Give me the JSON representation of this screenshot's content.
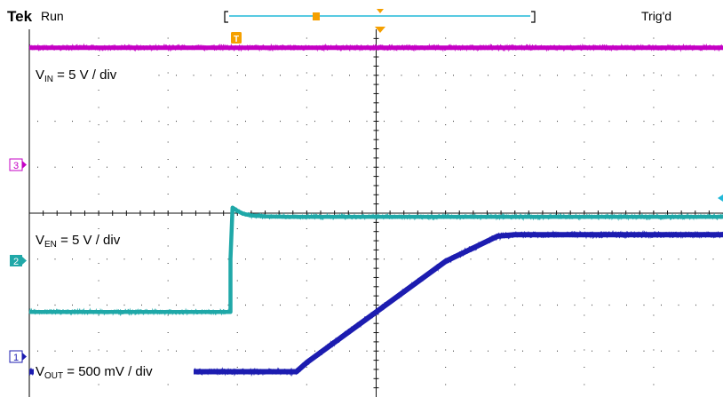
{
  "header": {
    "brand": "Tek",
    "mode": "Run",
    "trigger_status": "Trig'd"
  },
  "channel_labels": {
    "ch3": {
      "prefix": "V",
      "subscript": "IN",
      "suffix": " = 5 V / div"
    },
    "ch2": {
      "prefix": "V",
      "subscript": "EN",
      "suffix": " = 5 V / div"
    },
    "ch1": {
      "prefix": "V",
      "subscript": "OUT",
      "suffix": " = 500 mV / div"
    }
  },
  "markers": {
    "ch3": "3",
    "ch2": "2",
    "ch1": "1",
    "trigger": "T"
  },
  "colors": {
    "vin": "#c400c4",
    "ven": "#20a8a8",
    "vout": "#1c1cb0",
    "trigger": "#f5a000",
    "grid": "#555555",
    "record_bar": "#20b8d8"
  },
  "chart_data": {
    "type": "line",
    "grid": {
      "horizontal_divisions": 10,
      "vertical_divisions": 8,
      "grid": true
    },
    "x_range": [
      0,
      10
    ],
    "trigger_position_div": 3,
    "series": [
      {
        "name": "V_IN",
        "channel": "3",
        "x": [
          0,
          10
        ],
        "y": [
          7.6,
          7.6
        ]
      },
      {
        "name": "V_EN",
        "channel": "2",
        "x": [
          0,
          2.9,
          2.9,
          2.93,
          2.96,
          3.0,
          3.05,
          3.1,
          3.2,
          3.4,
          3.7,
          10
        ],
        "y": [
          1.85,
          1.85,
          3.0,
          4.12,
          4.09,
          4.05,
          4.01,
          3.98,
          3.95,
          3.93,
          3.92,
          3.92
        ]
      },
      {
        "name": "V_OUT",
        "channel": "1",
        "x": [
          0,
          3.85,
          4.0,
          5.0,
          6.0,
          6.75,
          7.0,
          10
        ],
        "y": [
          0.55,
          0.55,
          0.75,
          1.85,
          2.95,
          3.5,
          3.53,
          3.53
        ]
      }
    ]
  }
}
